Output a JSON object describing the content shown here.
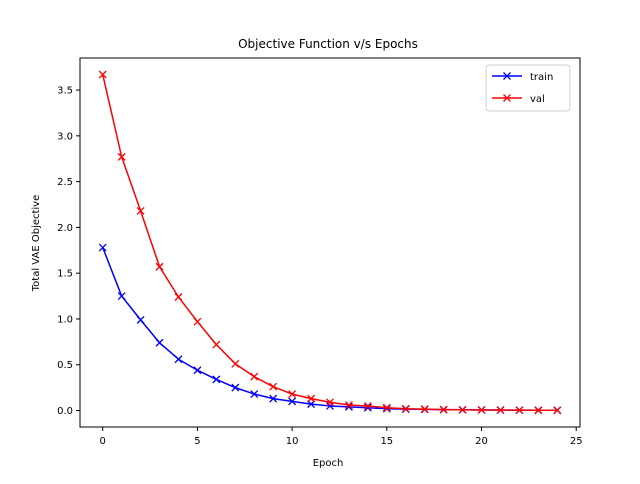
{
  "chart_data": {
    "type": "line",
    "title": "Objective Function v/s Epochs",
    "xlabel": "Epoch",
    "ylabel": "Total VAE Objective",
    "xlim": [
      -1.2,
      25.2
    ],
    "ylim": [
      -0.18,
      3.85
    ],
    "xticks": [
      0,
      5,
      10,
      15,
      20,
      25
    ],
    "yticks": [
      0.0,
      0.5,
      1.0,
      1.5,
      2.0,
      2.5,
      3.0,
      3.5
    ],
    "xtick_labels": [
      "0",
      "5",
      "10",
      "15",
      "20",
      "25"
    ],
    "ytick_labels": [
      "0.0",
      "0.5",
      "1.0",
      "1.5",
      "2.0",
      "2.5",
      "3.0",
      "3.5"
    ],
    "legend_position": "top-right",
    "grid": false,
    "x": [
      0,
      1,
      2,
      3,
      4,
      5,
      6,
      7,
      8,
      9,
      10,
      11,
      12,
      13,
      14,
      15,
      16,
      17,
      18,
      19,
      20,
      21,
      22,
      23,
      24
    ],
    "series": [
      {
        "name": "train",
        "color": "#0000ff",
        "marker": "x",
        "values": [
          1.78,
          1.25,
          0.99,
          0.74,
          0.56,
          0.44,
          0.34,
          0.25,
          0.18,
          0.13,
          0.1,
          0.07,
          0.05,
          0.04,
          0.03,
          0.02,
          0.015,
          0.012,
          0.01,
          0.008,
          0.006,
          0.005,
          0.004,
          0.003,
          0.003
        ]
      },
      {
        "name": "val",
        "color": "#ff0000",
        "marker": "x",
        "values": [
          3.67,
          2.77,
          2.18,
          1.57,
          1.24,
          0.97,
          0.72,
          0.51,
          0.37,
          0.26,
          0.18,
          0.13,
          0.09,
          0.06,
          0.05,
          0.03,
          0.02,
          0.015,
          0.01,
          0.008,
          0.006,
          0.005,
          0.004,
          0.003,
          0.003
        ]
      }
    ]
  }
}
